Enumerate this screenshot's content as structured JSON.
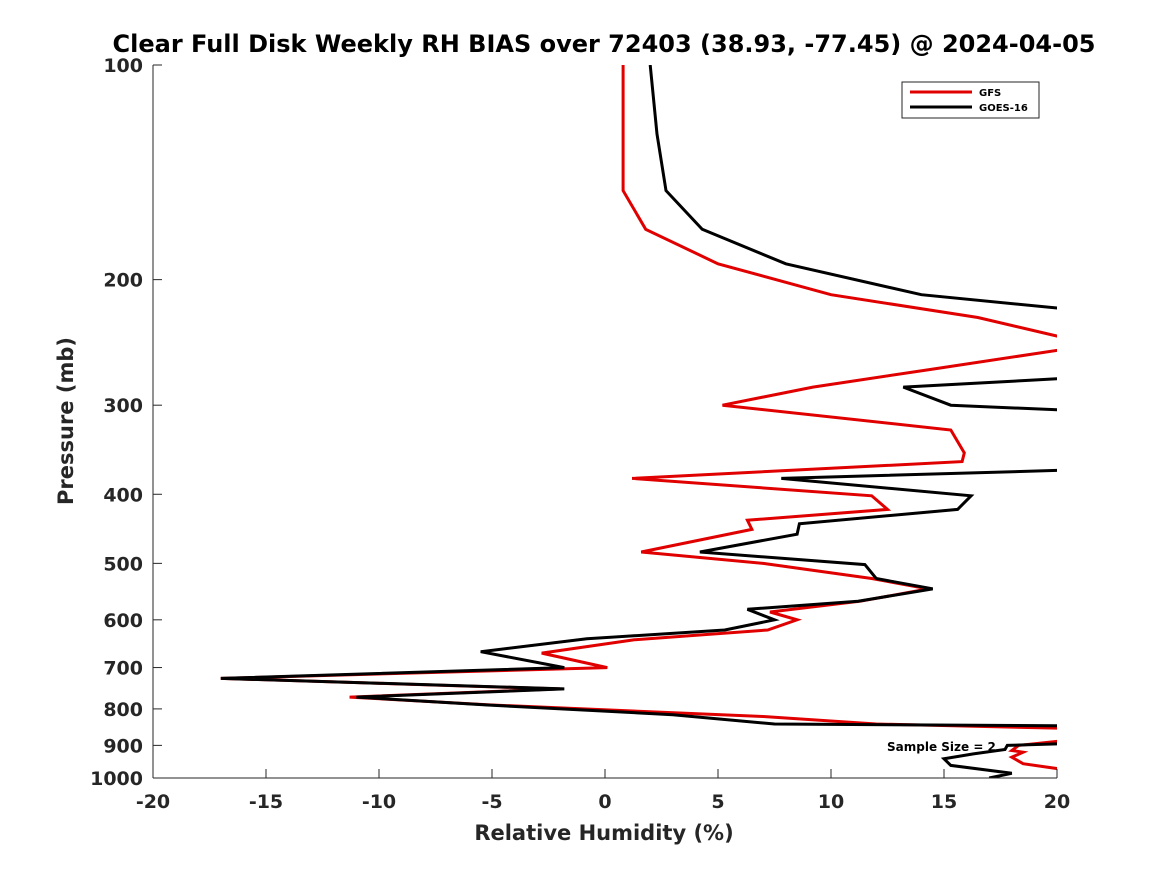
{
  "chart_data": {
    "type": "line",
    "title": "Clear Full Disk Weekly RH BIAS over 72403 (38.93, -77.45) @ 2024-04-05",
    "xlabel": "Relative Humidity (%)",
    "ylabel": "Pressure (mb)",
    "xlim": [
      -20,
      20
    ],
    "ylim": [
      100,
      1000
    ],
    "yscale": "log",
    "y_reversed": true,
    "x_ticks": [
      -20,
      -15,
      -10,
      -5,
      0,
      5,
      10,
      15,
      20
    ],
    "y_ticks": [
      100,
      200,
      300,
      400,
      500,
      600,
      700,
      800,
      900,
      1000
    ],
    "grid": false,
    "legend_position": "top-right",
    "annotation": "Sample Size = 2",
    "series": [
      {
        "name": "GFS",
        "color": "#e00000",
        "points": [
          [
            0.8,
            100
          ],
          [
            0.8,
            125
          ],
          [
            0.8,
            150
          ],
          [
            1.8,
            170
          ],
          [
            5.0,
            190
          ],
          [
            10.0,
            210
          ],
          [
            16.5,
            226
          ],
          [
            20.5,
            242
          ],
          [
            20.5,
            250
          ],
          [
            14.5,
            267
          ],
          [
            9.2,
            283
          ],
          [
            5.2,
            300
          ],
          [
            15.3,
            325
          ],
          [
            15.9,
            350
          ],
          [
            15.8,
            360
          ],
          [
            1.2,
            380
          ],
          [
            11.8,
            402
          ],
          [
            12.5,
            420
          ],
          [
            6.3,
            435
          ],
          [
            6.5,
            448
          ],
          [
            1.6,
            482
          ],
          [
            7.0,
            500
          ],
          [
            11.8,
            525
          ],
          [
            14.3,
            543
          ],
          [
            11.3,
            565
          ],
          [
            7.3,
            585
          ],
          [
            8.5,
            600
          ],
          [
            7.2,
            620
          ],
          [
            1.3,
            640
          ],
          [
            -2.8,
            668
          ],
          [
            0.1,
            700
          ],
          [
            -17.0,
            725
          ],
          [
            -2.0,
            750
          ],
          [
            -11.3,
            770
          ],
          [
            -5.0,
            790
          ],
          [
            7.0,
            820
          ],
          [
            12.0,
            840
          ],
          [
            20.5,
            852
          ],
          [
            20.5,
            885
          ],
          [
            18.3,
            900
          ],
          [
            18.0,
            915
          ],
          [
            18.5,
            920
          ],
          [
            18.0,
            935
          ],
          [
            18.5,
            955
          ],
          [
            20.5,
            975
          ]
        ]
      },
      {
        "name": "GOES-16",
        "color": "#000000",
        "points": [
          [
            2.0,
            100
          ],
          [
            2.3,
            125
          ],
          [
            2.7,
            150
          ],
          [
            4.3,
            170
          ],
          [
            8.0,
            190
          ],
          [
            14.0,
            210
          ],
          [
            20.5,
            220
          ],
          [
            20.5,
            275
          ],
          [
            13.2,
            283
          ],
          [
            15.3,
            300
          ],
          [
            20.5,
            305
          ],
          [
            20.5,
            370
          ],
          [
            7.8,
            380
          ],
          [
            16.2,
            402
          ],
          [
            15.6,
            420
          ],
          [
            8.6,
            440
          ],
          [
            8.5,
            455
          ],
          [
            4.2,
            482
          ],
          [
            11.5,
            502
          ],
          [
            12.0,
            525
          ],
          [
            14.5,
            543
          ],
          [
            11.2,
            565
          ],
          [
            6.3,
            580
          ],
          [
            7.5,
            600
          ],
          [
            5.3,
            620
          ],
          [
            -0.8,
            638
          ],
          [
            -5.5,
            665
          ],
          [
            -1.8,
            700
          ],
          [
            -17.0,
            725
          ],
          [
            -1.8,
            750
          ],
          [
            -11.0,
            770
          ],
          [
            -5.2,
            790
          ],
          [
            3.0,
            815
          ],
          [
            7.5,
            840
          ],
          [
            20.5,
            845
          ],
          [
            20.5,
            895
          ],
          [
            17.8,
            900
          ],
          [
            17.7,
            912
          ],
          [
            16.3,
            925
          ],
          [
            15.0,
            940
          ],
          [
            15.3,
            960
          ],
          [
            18.0,
            985
          ],
          [
            17.0,
            1000
          ]
        ]
      }
    ]
  }
}
